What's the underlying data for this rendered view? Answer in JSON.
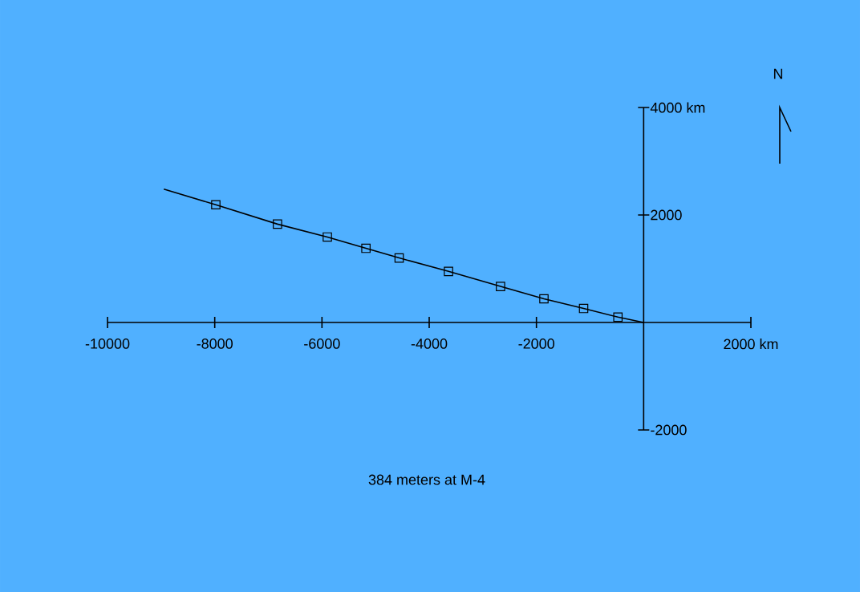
{
  "chart_data": {
    "type": "line",
    "xlim": [
      -10000,
      2000
    ],
    "ylim": [
      -2000,
      4000
    ],
    "xticks": [
      -10000,
      -8000,
      -6000,
      -4000,
      -2000,
      {
        "value": 2000,
        "label": "2000 km"
      }
    ],
    "yticks": [
      -2000,
      2000,
      {
        "value": 4000,
        "label": "4000 km"
      }
    ],
    "series": [
      {
        "type": "line",
        "color": "#000000",
        "marker": "none",
        "x": [
          -8950,
          -7980,
          -6830,
          -5900,
          -5180,
          -4560,
          -3640,
          -2670,
          -1860,
          -1120,
          -480,
          0
        ],
        "values": [
          2480,
          2190,
          1830,
          1590,
          1380,
          1200,
          950,
          670,
          440,
          260,
          100,
          0
        ]
      },
      {
        "type": "scatter",
        "color": "#000000",
        "marker": "square",
        "x": [
          -7980,
          -6830,
          -5900,
          -5180,
          -4560,
          -3640,
          -2670,
          -1860,
          -1120,
          -480
        ],
        "values": [
          2190,
          1830,
          1590,
          1380,
          1200,
          950,
          670,
          440,
          260,
          100
        ]
      }
    ],
    "annotations": [
      "384 meters at M-4",
      "N"
    ]
  }
}
